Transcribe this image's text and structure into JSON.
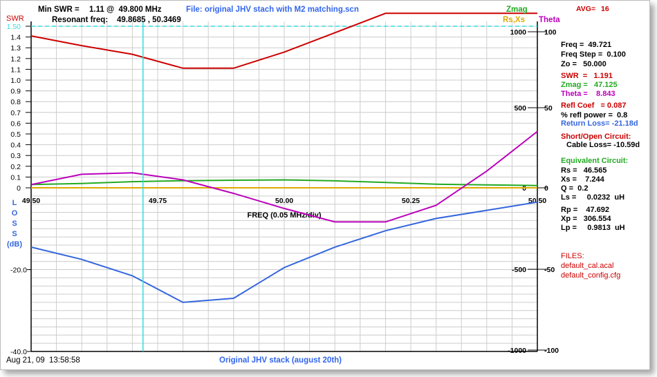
{
  "header": {
    "min_swr_label": "Min SWR =",
    "min_swr_value": "1.11 @  49.800 MHz",
    "file_label": "File: original JHV stach with M2 matching.scn",
    "resonant_label": "Resonant freq:",
    "resonant_value": "49.8685 , 50.3469",
    "avg_label": "AVG=",
    "avg_value": "16",
    "swr_axis_title": "SWR",
    "zmag_title": "Zmag",
    "rsxs_title": "Rs,Xs",
    "theta_title": "Theta"
  },
  "readout": {
    "freq": "Freq =  49.721",
    "freq_step": "Freq Step =  0.100",
    "zo": "Zo =   50.000",
    "swr": "SWR  =   1.191",
    "zmag": "Zmag =   47.125",
    "theta": "Theta =    8.843",
    "refl_coef": "Refl Coef   = 0.087",
    "refl_power": "% refl power =  0.8",
    "return_loss": "Return Loss= -21.18d",
    "short_open": "Short/Open Circuit:",
    "cable_loss": "Cable Loss= -10.59d",
    "equiv": "Equivalent Circuit:",
    "rs": "Rs =   46.565",
    "xs": "Xs =    7.244",
    "q": "Q =  0.2",
    "ls": "Ls =     0.0232  uH",
    "rp": "Rp =    47.692",
    "xp": "Xp =   306.554",
    "lp": "Lp =     0.9813  uH",
    "files_label": "FILES:",
    "file1": "default_cal.acal",
    "file2": "default_config.cfg"
  },
  "footer": {
    "timestamp": "Aug 21, 09  13:58:58",
    "caption": "Original JHV stack (august 20th)"
  },
  "colors": {
    "swr": "#cc0000",
    "zmag": "#22aa22",
    "rsxs": "#ddaa00",
    "theta": "#bb00bb",
    "loss": "#3366dd",
    "cursor": "#33dddd",
    "grid": "#cccccc",
    "axis": "#000000",
    "header_black": "#000000",
    "file_blue": "#3366ee"
  },
  "chart_data": {
    "type": "line",
    "xlabel": "FREQ (0.05 MHz/div)",
    "x_ticks": [
      "49.50",
      "49.75",
      "50.00",
      "50.25",
      "50.50"
    ],
    "xlim": [
      49.5,
      50.5
    ],
    "swr_ticks": [
      "1.50",
      "1.4",
      "1.3",
      "1.2",
      "1.1",
      "1.0",
      "0.9",
      "0.8",
      "0.7",
      "0.6",
      "0.5",
      "0.4",
      "0.3",
      "0.2",
      "0.1",
      "0"
    ],
    "swr_limit_line": 1.5,
    "loss_axis_label": [
      "L",
      "O",
      "S",
      "S",
      "(dB)"
    ],
    "loss_ticks": [
      "-20.0",
      "-40.0"
    ],
    "zmag_ticks": [
      "1000",
      "500",
      "0",
      "-500",
      "-1000"
    ],
    "theta_ticks": [
      "100",
      "50",
      "0",
      "-50",
      "-100"
    ],
    "cursor_x": 49.721,
    "series": [
      {
        "name": "SWR",
        "axis": "swr",
        "x": [
          49.5,
          49.6,
          49.7,
          49.8,
          49.9,
          50.0,
          50.1,
          50.2,
          50.3,
          50.4,
          50.5
        ],
        "values": [
          1.41,
          1.32,
          1.24,
          1.11,
          1.11,
          1.26,
          1.44,
          1.62,
          1.62,
          1.62,
          1.62
        ]
      },
      {
        "name": "Zmag",
        "axis": "zmag",
        "x": [
          49.5,
          49.6,
          49.7,
          49.8,
          49.9,
          50.0,
          50.1,
          50.2,
          50.3,
          50.4,
          50.5
        ],
        "values": [
          20,
          27,
          38,
          44,
          47,
          49,
          43,
          33,
          22,
          18,
          14
        ]
      },
      {
        "name": "Rs,Xs",
        "axis": "zmag",
        "x": [
          49.5,
          50.5
        ],
        "values": [
          0,
          0
        ]
      },
      {
        "name": "Theta",
        "axis": "theta",
        "x": [
          49.5,
          49.6,
          49.7,
          49.8,
          49.9,
          50.0,
          50.1,
          50.2,
          50.3,
          50.4,
          50.5
        ],
        "values": [
          2,
          8.5,
          9.5,
          5,
          -3.5,
          -13,
          -21.5,
          -21.5,
          -11,
          10.5,
          35.5
        ]
      },
      {
        "name": "Return Loss",
        "axis": "loss",
        "x": [
          49.5,
          49.6,
          49.7,
          49.8,
          49.9,
          50.0,
          50.1,
          50.2,
          50.3,
          50.4,
          50.5
        ],
        "values": [
          -14.5,
          -17.5,
          -21.5,
          -28,
          -27,
          -19.5,
          -14.5,
          -10.5,
          -7.5,
          -5.5,
          -3.5
        ]
      }
    ]
  }
}
